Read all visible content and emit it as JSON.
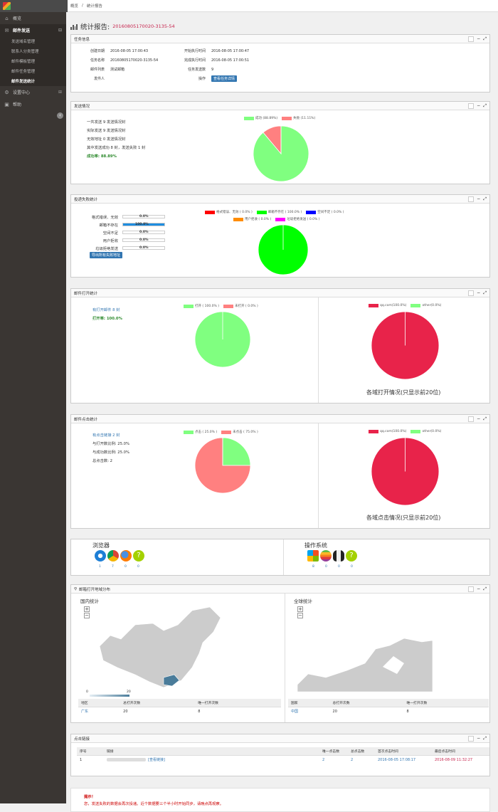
{
  "breadcrumb": [
    "概览",
    "/",
    "统计报告"
  ],
  "sidebar": {
    "items": [
      {
        "icon": "home-icon",
        "label": "概览"
      },
      {
        "icon": "mail-icon",
        "label": "邮件发送"
      },
      {
        "icon": "gear-icon",
        "label": "设置中心"
      },
      {
        "icon": "help-icon",
        "label": "帮助"
      }
    ],
    "sub": [
      "发送域名管理",
      "联系人分类管理",
      "邮件模板管理",
      "邮件任务管理",
      "邮件发送统计"
    ]
  },
  "page": {
    "title": "统计报告:",
    "task_id": "20160805170020-3135-54"
  },
  "task_panel": {
    "title": "任务信息",
    "rows": [
      [
        "创建日期",
        "2016-08-05 17:00:43",
        "开始执行时间",
        "2016-08-05 17:00:47"
      ],
      [
        "任务名称",
        "20160805170020-3135-54",
        "完成执行时间",
        "2016-08-05 17:00:51"
      ],
      [
        "邮件列表",
        "测试邮箱",
        "任务发送数",
        "9"
      ],
      [
        "发件人",
        "",
        "操作",
        ""
      ]
    ],
    "detail_button": "查看任务详情"
  },
  "send_panel": {
    "title": "发送情况",
    "lines": [
      "一共发送 9 发送情况封",
      "实际发送 9 发送情况封",
      "无效地址 0 发送情况封",
      "其中发送成功 8 封，发送失败 1 封"
    ],
    "rate": "成功率: 88.89%",
    "legend": [
      {
        "label": "成功 (88.89%)",
        "color": "#80ff80"
      },
      {
        "label": "失败 (11.11%)",
        "color": "#ff8080"
      }
    ]
  },
  "fail_panel": {
    "title": "投递失败统计",
    "bars": [
      {
        "label": "格式错误、无效",
        "value": "0.0%",
        "pct": 0
      },
      {
        "label": "邮箱不存在",
        "value": "100.0%",
        "pct": 1
      },
      {
        "label": "空间不足",
        "value": "0.0%",
        "pct": 0
      },
      {
        "label": "用户拒收",
        "value": "0.0%",
        "pct": 0
      },
      {
        "label": "垃圾拒绝发送",
        "value": "0.0%",
        "pct": 0
      }
    ],
    "export_button": "导出所有失败地址",
    "legend": [
      {
        "label": "格式错误、无效 ( 0.0% )",
        "color": "#ff0000"
      },
      {
        "label": "邮箱不存在 ( 100.0% )",
        "color": "#00ff00"
      },
      {
        "label": "空间不足 ( 0.0% )",
        "color": "#0000ff"
      },
      {
        "label": "用户拒收 ( 0.0% )",
        "color": "#ff8c00"
      },
      {
        "label": "垃圾拒绝发送 ( 0.0% )",
        "color": "#ff00ff"
      }
    ]
  },
  "open_panel": {
    "title": "邮件打开统计",
    "lines": [
      "有打开邮件 8 封"
    ],
    "rate": "打开率: 100.0%",
    "legend": [
      {
        "label": "打开 ( 100.0% )",
        "color": "#80ff80"
      },
      {
        "label": "未打开 ( 0.0% )",
        "color": "#ff8080"
      }
    ],
    "domain_legend": [
      {
        "label": "qq.com(100.0%)",
        "color": "#e8234a"
      },
      {
        "label": "other(0.0%)",
        "color": "#80ff80"
      }
    ],
    "caption": "各域打开情况(只显示前20位)"
  },
  "click_panel": {
    "title": "邮件点击统计",
    "lines": [
      "有点击链接 2 封",
      "与打开数比例: 25.0%",
      "与成功数比例: 25.0%",
      "总点击数: 2"
    ],
    "legend": [
      {
        "label": "点击 ( 25.0% )",
        "color": "#80ff80"
      },
      {
        "label": "未点击 ( 75.0% )",
        "color": "#ff8080"
      }
    ],
    "domain_legend": [
      {
        "label": "qq.com(100.0%)",
        "color": "#e8234a"
      },
      {
        "label": "other(0.0%)",
        "color": "#80ff80"
      }
    ],
    "caption": "各域点击情况(只显示前20位)"
  },
  "env_panel": {
    "browser_title": "浏览器",
    "browser_counts": [
      "1",
      "7",
      "0",
      "0"
    ],
    "os_title": "操作系统",
    "os_counts": [
      "8",
      "0",
      "0",
      "0"
    ]
  },
  "geo_panel": {
    "title": "邮箱打开地域分布",
    "domestic_title": "国内统计",
    "global_title": "全球统计",
    "scale": [
      "0",
      "20"
    ],
    "domestic_headers": [
      "地区",
      "总打开次数",
      "唯一打开次数"
    ],
    "domestic_rows": [
      [
        "广东",
        "20",
        "8"
      ]
    ],
    "global_headers": [
      "国家",
      "总打开次数",
      "唯一打开次数"
    ],
    "global_rows": [
      [
        "中国",
        "20",
        "8"
      ]
    ]
  },
  "links_panel": {
    "title": "点击链接",
    "headers": [
      "序号",
      "链接",
      "唯一点击数",
      "总点击数",
      "首次点击时间",
      "最后点击时间"
    ],
    "rows": [
      [
        "1",
        "[查看链接]",
        "2",
        "2",
        "2016-08-05 17:08:17",
        "2016-08-09 11:32:27"
      ]
    ]
  },
  "tip": {
    "title": "提示！",
    "text": "您，发送失败的数据会再次投递。近个数据要三个半小时开始同步，请晚点再观察。"
  },
  "chart_data": [
    {
      "type": "pie",
      "title": "",
      "categories": [
        "成功",
        "失败"
      ],
      "values": [
        88.89,
        11.11
      ]
    },
    {
      "type": "pie",
      "title": "",
      "categories": [
        "格式错误、无效",
        "邮箱不存在",
        "空间不足",
        "用户拒收",
        "垃圾拒绝发送"
      ],
      "values": [
        0,
        100,
        0,
        0,
        0
      ]
    },
    {
      "type": "pie",
      "title": "",
      "categories": [
        "打开",
        "未打开"
      ],
      "values": [
        100,
        0
      ]
    },
    {
      "type": "pie",
      "title": "各域打开情况(只显示前20位)",
      "categories": [
        "qq.com",
        "other"
      ],
      "values": [
        100,
        0
      ]
    },
    {
      "type": "pie",
      "title": "",
      "categories": [
        "点击",
        "未点击"
      ],
      "values": [
        25,
        75
      ]
    },
    {
      "type": "pie",
      "title": "各域点击情况(只显示前20位)",
      "categories": [
        "qq.com",
        "other"
      ],
      "values": [
        100,
        0
      ]
    }
  ]
}
